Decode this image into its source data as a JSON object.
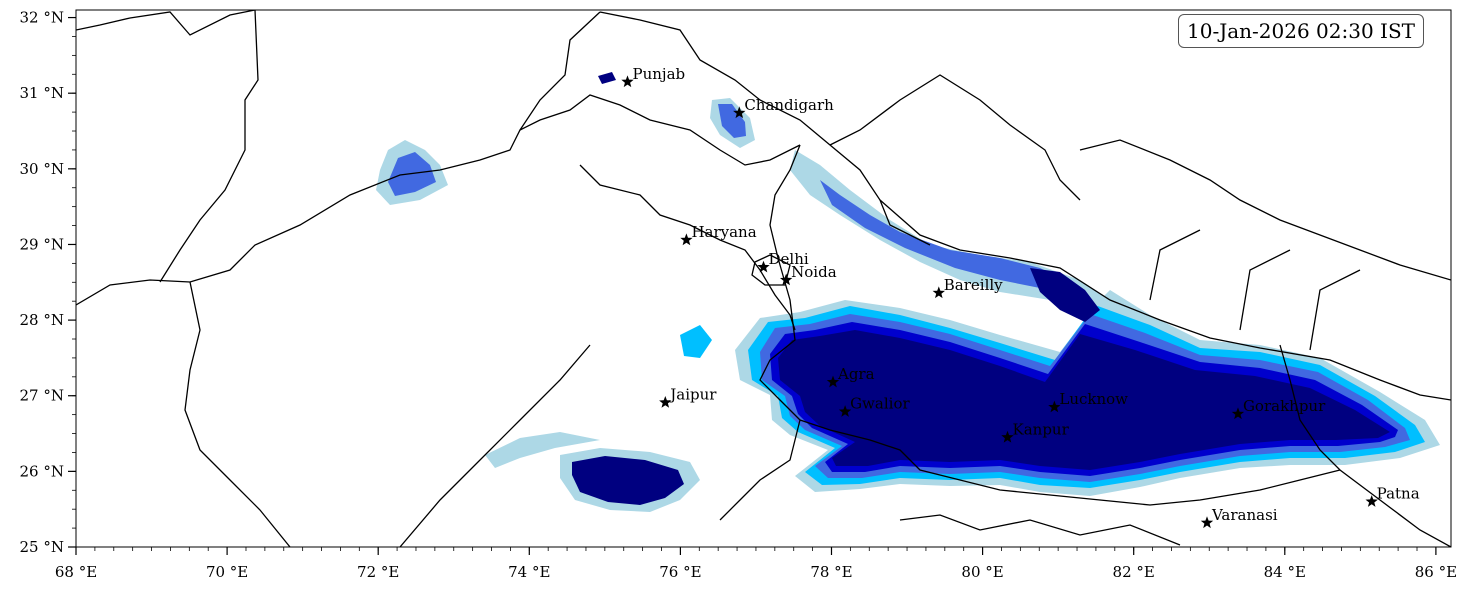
{
  "map": {
    "timestamp": "10-Jan-2026 02:30 IST",
    "extent": {
      "lon": [
        68,
        86.2
      ],
      "lat": [
        25,
        32.1
      ]
    },
    "x_ticks": [
      {
        "lon": 68,
        "label": "68 °E"
      },
      {
        "lon": 70,
        "label": "70 °E"
      },
      {
        "lon": 72,
        "label": "72 °E"
      },
      {
        "lon": 74,
        "label": "74 °E"
      },
      {
        "lon": 76,
        "label": "76 °E"
      },
      {
        "lon": 78,
        "label": "78 °E"
      },
      {
        "lon": 80,
        "label": "80 °E"
      },
      {
        "lon": 82,
        "label": "82 °E"
      },
      {
        "lon": 84,
        "label": "84 °E"
      },
      {
        "lon": 86,
        "label": "86 °E"
      }
    ],
    "y_ticks": [
      {
        "lat": 25,
        "label": "25 °N"
      },
      {
        "lat": 26,
        "label": "26 °N"
      },
      {
        "lat": 27,
        "label": "27 °N"
      },
      {
        "lat": 28,
        "label": "28 °N"
      },
      {
        "lat": 29,
        "label": "29 °N"
      },
      {
        "lat": 30,
        "label": "30 °N"
      },
      {
        "lat": 31,
        "label": "31 °N"
      },
      {
        "lat": 32,
        "label": "32 °N"
      }
    ],
    "cities": [
      {
        "name": "Punjab",
        "lon": 75.3,
        "lat": 31.15
      },
      {
        "name": "Chandigarh",
        "lon": 76.78,
        "lat": 30.74
      },
      {
        "name": "Haryana",
        "lon": 76.08,
        "lat": 29.06
      },
      {
        "name": "Delhi",
        "lon": 77.1,
        "lat": 28.7
      },
      {
        "name": "Noida",
        "lon": 77.4,
        "lat": 28.53
      },
      {
        "name": "Bareilly",
        "lon": 79.42,
        "lat": 28.36
      },
      {
        "name": "Jaipur",
        "lon": 75.8,
        "lat": 26.91
      },
      {
        "name": "Agra",
        "lon": 78.02,
        "lat": 27.18
      },
      {
        "name": "Gwalior",
        "lon": 78.18,
        "lat": 26.79
      },
      {
        "name": "Lucknow",
        "lon": 80.95,
        "lat": 26.85
      },
      {
        "name": "Kanpur",
        "lon": 80.33,
        "lat": 26.45
      },
      {
        "name": "Gorakhpur",
        "lon": 83.38,
        "lat": 26.76
      },
      {
        "name": "Varanasi",
        "lon": 82.97,
        "lat": 25.32
      },
      {
        "name": "Patna",
        "lon": 85.15,
        "lat": 25.6
      }
    ],
    "fog_colors": [
      "#add8e6",
      "#00bfff",
      "#4169e1",
      "#0000cd",
      "#000080"
    ]
  }
}
